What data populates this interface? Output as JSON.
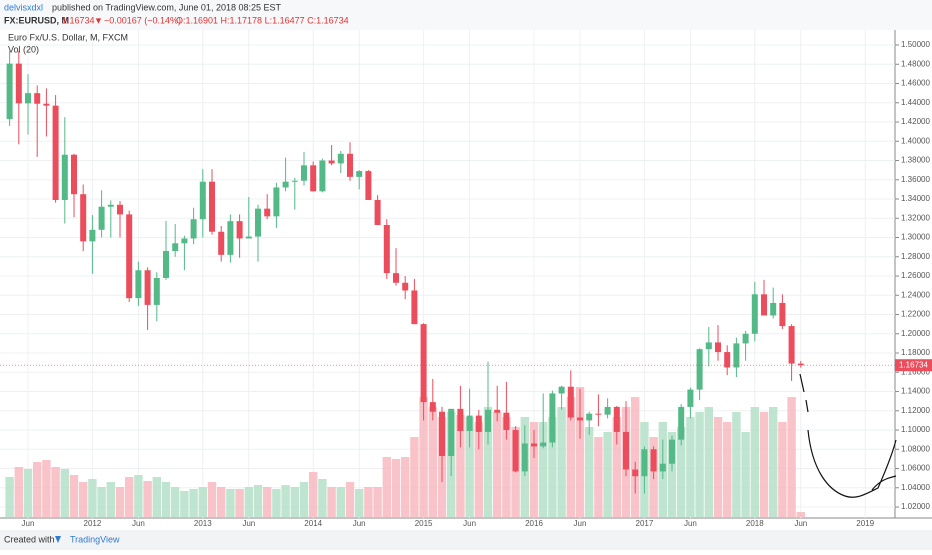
{
  "header": {
    "author": "delvisxdxl",
    "published": "published on TradingView.com, June 01, 2018 08:25 EST",
    "symbol": "FX:EURUSD, M",
    "last": "1.16734",
    "arrow": "▼",
    "change": "−0.00167 (−0.14%)",
    "ohlc": "O:1.16901 H:1.17178 L:1.16477 C:1.16734"
  },
  "footer": {
    "created": "Created with",
    "brand": "TradingView"
  },
  "chart_data": {
    "type": "candlestick",
    "title": "Euro Fx/U.S. Dollar, M, FXCM",
    "volume_label": "Vol (20)",
    "x": [
      "2011-04",
      "2011-05",
      "2011-06",
      "2011-07",
      "2011-08",
      "2011-09",
      "2011-10",
      "2011-11",
      "2011-12",
      "2012-01",
      "2012-02",
      "2012-03",
      "2012-04",
      "2012-05",
      "2012-06",
      "2012-07",
      "2012-08",
      "2012-09",
      "2012-10",
      "2012-11",
      "2012-12",
      "2013-01",
      "2013-02",
      "2013-03",
      "2013-04",
      "2013-05",
      "2013-06",
      "2013-07",
      "2013-08",
      "2013-09",
      "2013-10",
      "2013-11",
      "2013-12",
      "2014-01",
      "2014-02",
      "2014-03",
      "2014-04",
      "2014-05",
      "2014-06",
      "2014-07",
      "2014-08",
      "2014-09",
      "2014-10",
      "2014-11",
      "2014-12",
      "2015-01",
      "2015-02",
      "2015-03",
      "2015-04",
      "2015-05",
      "2015-06",
      "2015-07",
      "2015-08",
      "2015-09",
      "2015-10",
      "2015-11",
      "2015-12",
      "2016-01",
      "2016-02",
      "2016-03",
      "2016-04",
      "2016-05",
      "2016-06",
      "2016-07",
      "2016-08",
      "2016-09",
      "2016-10",
      "2016-11",
      "2016-12",
      "2017-01",
      "2017-02",
      "2017-03",
      "2017-04",
      "2017-05",
      "2017-06",
      "2017-07",
      "2017-08",
      "2017-09",
      "2017-10",
      "2017-11",
      "2017-12",
      "2018-01",
      "2018-02",
      "2018-03",
      "2018-04",
      "2018-05",
      "2018-06"
    ],
    "open": [
      1.423,
      1.4807,
      1.4394,
      1.45,
      1.439,
      1.437,
      1.339,
      1.386,
      1.345,
      1.296,
      1.308,
      1.332,
      1.334,
      1.324,
      1.237,
      1.266,
      1.23,
      1.258,
      1.286,
      1.294,
      1.299,
      1.319,
      1.358,
      1.306,
      1.282,
      1.317,
      1.299,
      1.301,
      1.33,
      1.322,
      1.352,
      1.358,
      1.359,
      1.375,
      1.348,
      1.38,
      1.377,
      1.387,
      1.363,
      1.369,
      1.339,
      1.313,
      1.263,
      1.253,
      1.245,
      1.21,
      1.129,
      1.119,
      1.073,
      1.122,
      1.099,
      1.115,
      1.098,
      1.121,
      1.118,
      1.1,
      1.057,
      1.086,
      1.083,
      1.087,
      1.138,
      1.145,
      1.113,
      1.11,
      1.117,
      1.116,
      1.124,
      1.098,
      1.059,
      1.052,
      1.08,
      1.057,
      1.065,
      1.09,
      1.124,
      1.142,
      1.184,
      1.191,
      1.181,
      1.165,
      1.19,
      1.2,
      1.241,
      1.219,
      1.232,
      1.208,
      1.16901
    ],
    "high": [
      1.494,
      1.494,
      1.4698,
      1.458,
      1.455,
      1.448,
      1.425,
      1.387,
      1.355,
      1.3233,
      1.349,
      1.3385,
      1.338,
      1.328,
      1.275,
      1.269,
      1.264,
      1.317,
      1.314,
      1.302,
      1.331,
      1.371,
      1.371,
      1.312,
      1.324,
      1.324,
      1.342,
      1.334,
      1.345,
      1.357,
      1.383,
      1.362,
      1.389,
      1.379,
      1.382,
      1.396,
      1.39,
      1.399,
      1.37,
      1.37,
      1.344,
      1.319,
      1.289,
      1.26,
      1.257,
      1.211,
      1.153,
      1.124,
      1.122,
      1.146,
      1.143,
      1.121,
      1.171,
      1.146,
      1.15,
      1.104,
      1.105,
      1.1,
      1.138,
      1.141,
      1.146,
      1.162,
      1.143,
      1.119,
      1.137,
      1.133,
      1.125,
      1.13,
      1.067,
      1.083,
      1.083,
      1.09,
      1.094,
      1.127,
      1.144,
      1.185,
      1.207,
      1.209,
      1.188,
      1.196,
      1.203,
      1.254,
      1.256,
      1.248,
      1.241,
      1.21,
      1.17178
    ],
    "low": [
      1.416,
      1.3968,
      1.407,
      1.3837,
      1.405,
      1.3362,
      1.3145,
      1.321,
      1.2858,
      1.2623,
      1.3,
      1.3,
      1.3,
      1.233,
      1.229,
      1.204,
      1.213,
      1.256,
      1.28,
      1.266,
      1.293,
      1.3,
      1.303,
      1.275,
      1.274,
      1.279,
      1.3,
      1.275,
      1.319,
      1.31,
      1.348,
      1.329,
      1.354,
      1.348,
      1.347,
      1.375,
      1.367,
      1.359,
      1.35,
      1.339,
      1.315,
      1.257,
      1.25,
      1.236,
      1.21,
      1.11,
      1.11,
      1.046,
      1.052,
      1.082,
      1.082,
      1.08,
      1.085,
      1.109,
      1.09,
      1.056,
      1.052,
      1.071,
      1.081,
      1.082,
      1.121,
      1.11,
      1.091,
      1.095,
      1.104,
      1.112,
      1.085,
      1.052,
      1.034,
      1.034,
      1.049,
      1.049,
      1.057,
      1.084,
      1.112,
      1.131,
      1.166,
      1.172,
      1.157,
      1.155,
      1.172,
      1.192,
      1.221,
      1.216,
      1.205,
      1.151,
      1.16477
    ],
    "close": [
      1.4807,
      1.4394,
      1.45,
      1.439,
      1.437,
      1.339,
      1.386,
      1.345,
      1.296,
      1.308,
      1.332,
      1.334,
      1.324,
      1.237,
      1.266,
      1.23,
      1.258,
      1.286,
      1.294,
      1.299,
      1.319,
      1.358,
      1.306,
      1.282,
      1.317,
      1.299,
      1.301,
      1.33,
      1.322,
      1.352,
      1.358,
      1.359,
      1.375,
      1.348,
      1.38,
      1.377,
      1.387,
      1.363,
      1.369,
      1.339,
      1.313,
      1.263,
      1.253,
      1.245,
      1.21,
      1.129,
      1.119,
      1.073,
      1.122,
      1.099,
      1.115,
      1.098,
      1.121,
      1.118,
      1.1,
      1.057,
      1.086,
      1.083,
      1.087,
      1.138,
      1.145,
      1.113,
      1.11,
      1.117,
      1.116,
      1.124,
      1.098,
      1.059,
      1.052,
      1.08,
      1.057,
      1.065,
      1.09,
      1.124,
      1.142,
      1.184,
      1.191,
      1.181,
      1.165,
      1.19,
      1.2,
      1.241,
      1.219,
      1.232,
      1.208,
      1.169,
      1.16734
    ],
    "volume": [
      40,
      50,
      48,
      55,
      57,
      50,
      48,
      42,
      35,
      38,
      30,
      35,
      30,
      40,
      42,
      36,
      40,
      35,
      30,
      26,
      28,
      30,
      35,
      30,
      28,
      28,
      30,
      32,
      30,
      28,
      32,
      30,
      35,
      45,
      38,
      30,
      30,
      35,
      28,
      30,
      30,
      60,
      58,
      60,
      80,
      120,
      110,
      100,
      105,
      102,
      100,
      95,
      110,
      105,
      100,
      90,
      100,
      95,
      95,
      100,
      110,
      120,
      130,
      90,
      80,
      85,
      100,
      110,
      120,
      95,
      80,
      95,
      85,
      90,
      100,
      105,
      110,
      100,
      95,
      105,
      85,
      110,
      105,
      110,
      95,
      120,
      5
    ],
    "up_color": "#53b987",
    "down_color": "#eb4d5c",
    "vol_up_color": "#b4e0c9",
    "vol_down_color": "#f7b9c0",
    "price_tag": "1.16734",
    "ylim": [
      1.0086,
      1.5156
    ],
    "vlim": [
      0,
      150
    ],
    "yticks": [
      {
        "value": 1.02,
        "label": "1.02000"
      },
      {
        "value": 1.04,
        "label": "1.04000"
      },
      {
        "value": 1.06,
        "label": "1.06000"
      },
      {
        "value": 1.08,
        "label": "1.08000"
      },
      {
        "value": 1.1,
        "label": "1.10000"
      },
      {
        "value": 1.12,
        "label": "1.12000"
      },
      {
        "value": 1.14,
        "label": "1.14000"
      },
      {
        "value": 1.16,
        "label": "1.16000"
      },
      {
        "value": 1.18,
        "label": "1.18000"
      },
      {
        "value": 1.2,
        "label": "1.20000"
      },
      {
        "value": 1.22,
        "label": "1.22000"
      },
      {
        "value": 1.24,
        "label": "1.24000"
      },
      {
        "value": 1.26,
        "label": "1.26000"
      },
      {
        "value": 1.28,
        "label": "1.28000"
      },
      {
        "value": 1.3,
        "label": "1.30000"
      },
      {
        "value": 1.32,
        "label": "1.32000"
      },
      {
        "value": 1.34,
        "label": "1.34000"
      },
      {
        "value": 1.36,
        "label": "1.36000"
      },
      {
        "value": 1.38,
        "label": "1.38000"
      },
      {
        "value": 1.4,
        "label": "1.40000"
      },
      {
        "value": 1.42,
        "label": "1.42000"
      },
      {
        "value": 1.44,
        "label": "1.44000"
      },
      {
        "value": 1.46,
        "label": "1.46000"
      },
      {
        "value": 1.48,
        "label": "1.48000"
      },
      {
        "value": 1.5,
        "label": "1.50000"
      }
    ],
    "xticks": [
      {
        "value": "2011-06",
        "label": "Jun"
      },
      {
        "value": "2012-01",
        "label": "2012"
      },
      {
        "value": "2012-06",
        "label": "Jun"
      },
      {
        "value": "2013-01",
        "label": "2013"
      },
      {
        "value": "2013-06",
        "label": "Jun"
      },
      {
        "value": "2014-01",
        "label": "2014"
      },
      {
        "value": "2014-06",
        "label": "Jun"
      },
      {
        "value": "2015-01",
        "label": "2015"
      },
      {
        "value": "2015-06",
        "label": "Jun"
      },
      {
        "value": "2016-01",
        "label": "2016"
      },
      {
        "value": "2016-06",
        "label": "Jun"
      },
      {
        "value": "2017-01",
        "label": "2017"
      },
      {
        "value": "2017-06",
        "label": "Jun"
      },
      {
        "value": "2018-01",
        "label": "2018"
      },
      {
        "value": "2018-06",
        "label": "Jun"
      },
      {
        "value": "2019-01",
        "label": "2019"
      }
    ],
    "grid": true
  }
}
